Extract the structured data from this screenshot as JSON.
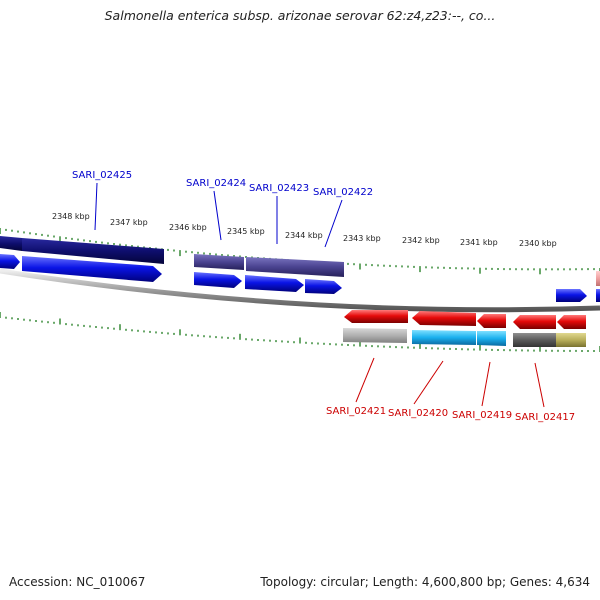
{
  "title": "Salmonella enterica subsp. arizonae serovar 62:z4,z23:--, co...",
  "footer": {
    "accession": "Accession: NC_010067",
    "stats": "Topology: circular; Length: 4,600,800 bp; Genes: 4,634"
  },
  "scale_labels": [
    "2348 kbp",
    "2347 kbp",
    "2346 kbp",
    "2345 kbp",
    "2344 kbp",
    "2343 kbp",
    "2342 kbp",
    "2341 kbp",
    "2340 kbp"
  ],
  "genes_top": [
    "SARI_02425",
    "SARI_02424",
    "SARI_02423",
    "SARI_02422"
  ],
  "genes_bottom": [
    "SARI_02421",
    "SARI_02420",
    "SARI_02419",
    "SARI_02417"
  ],
  "colors": {
    "forward_label": "#0000cc",
    "reverse_label": "#cc0000",
    "arrow_blue": "#0a14e6",
    "arrow_red": "#e60a0a",
    "cog_navy": "#0e0e6e",
    "cog_slate": "#4a4390",
    "tick_green": "#1a7a1a"
  }
}
